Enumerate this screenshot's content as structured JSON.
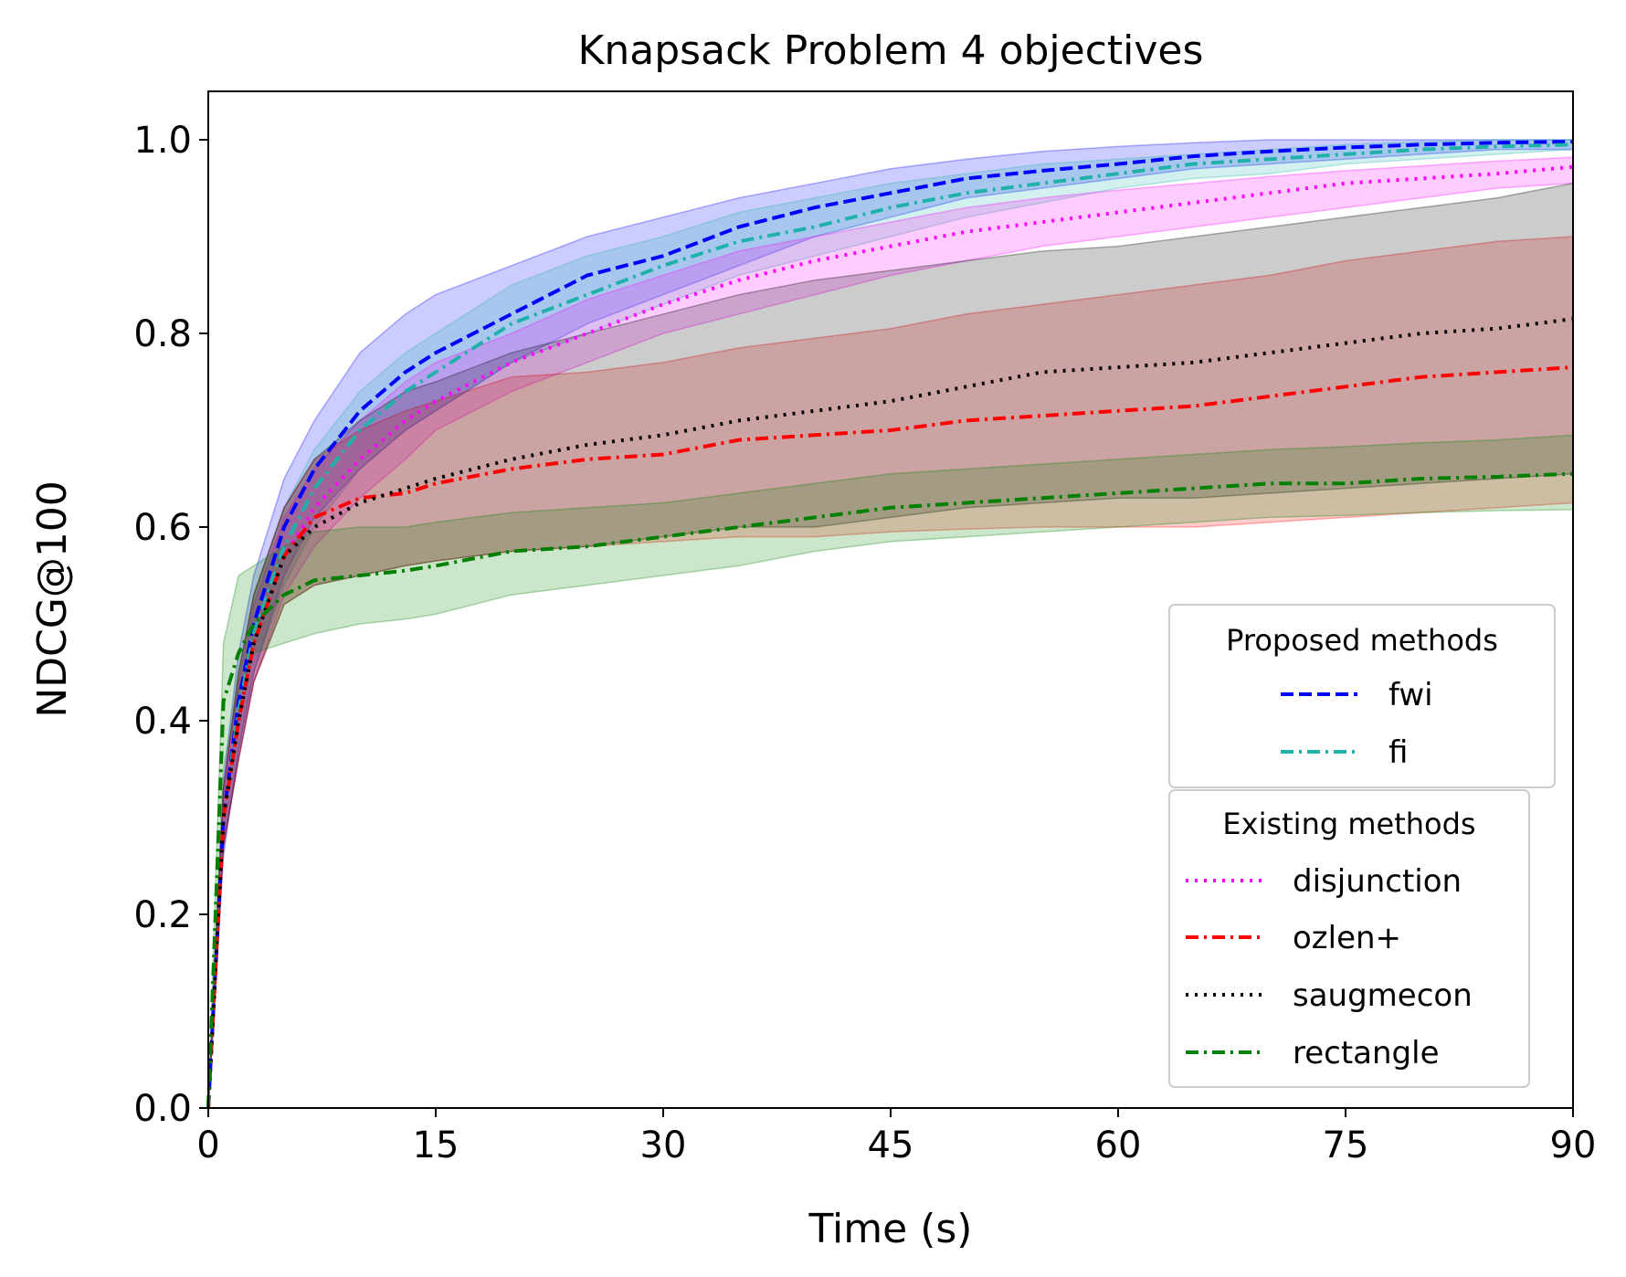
{
  "chart_data": {
    "type": "line",
    "title": "Knapsack Problem 4 objectives",
    "xlabel": "Time (s)",
    "ylabel": "NDCG@100",
    "xlim": [
      0,
      90
    ],
    "ylim": [
      0,
      1.05
    ],
    "xticks": [
      0,
      15,
      30,
      45,
      60,
      75,
      90
    ],
    "xtick_labels": [
      "0",
      "15",
      "30",
      "45",
      "60",
      "75",
      "90"
    ],
    "yticks": [
      0.0,
      0.2,
      0.4,
      0.6,
      0.8,
      1.0
    ],
    "ytick_labels": [
      "0.0",
      "0.2",
      "0.4",
      "0.6",
      "0.8",
      "1.0"
    ],
    "grid": false,
    "legend_groups": [
      {
        "title": "Proposed methods",
        "series": [
          "fwi",
          "fi"
        ]
      },
      {
        "title": "Existing methods",
        "series": [
          "disjunction",
          "ozlen+",
          "saugmecon",
          "rectangle"
        ]
      }
    ],
    "series": [
      {
        "name": "fwi",
        "color": "#0000ff",
        "dash": "dashed",
        "x": [
          0,
          1,
          2,
          3,
          5,
          7,
          10,
          13,
          15,
          20,
          25,
          30,
          35,
          40,
          45,
          50,
          55,
          60,
          65,
          70,
          75,
          80,
          85,
          90
        ],
        "y": [
          0.0,
          0.3,
          0.42,
          0.5,
          0.6,
          0.66,
          0.72,
          0.76,
          0.78,
          0.82,
          0.86,
          0.88,
          0.91,
          0.93,
          0.945,
          0.96,
          0.968,
          0.975,
          0.983,
          0.988,
          0.992,
          0.995,
          0.997,
          0.998
        ],
        "lower": [
          0.0,
          0.26,
          0.37,
          0.45,
          0.55,
          0.61,
          0.66,
          0.7,
          0.72,
          0.77,
          0.81,
          0.84,
          0.87,
          0.9,
          0.92,
          0.94,
          0.95,
          0.96,
          0.97,
          0.975,
          0.98,
          0.985,
          0.99,
          0.99
        ],
        "upper": [
          0.0,
          0.34,
          0.47,
          0.55,
          0.65,
          0.71,
          0.78,
          0.82,
          0.84,
          0.87,
          0.9,
          0.92,
          0.94,
          0.955,
          0.97,
          0.98,
          0.988,
          0.993,
          0.997,
          1.0,
          1.0,
          1.0,
          1.0,
          1.0
        ]
      },
      {
        "name": "fi",
        "color": "#20b2aa",
        "dash": "dashdot",
        "x": [
          0,
          1,
          2,
          3,
          5,
          7,
          10,
          13,
          15,
          20,
          25,
          30,
          35,
          40,
          45,
          50,
          55,
          60,
          65,
          70,
          75,
          80,
          85,
          90
        ],
        "y": [
          0.0,
          0.3,
          0.41,
          0.49,
          0.58,
          0.64,
          0.7,
          0.74,
          0.76,
          0.81,
          0.84,
          0.87,
          0.895,
          0.91,
          0.93,
          0.945,
          0.955,
          0.965,
          0.975,
          0.98,
          0.985,
          0.99,
          0.993,
          0.995
        ],
        "lower": [
          0.0,
          0.27,
          0.37,
          0.45,
          0.54,
          0.6,
          0.66,
          0.7,
          0.72,
          0.77,
          0.8,
          0.83,
          0.86,
          0.88,
          0.9,
          0.92,
          0.935,
          0.95,
          0.96,
          0.965,
          0.975,
          0.98,
          0.985,
          0.99
        ],
        "upper": [
          0.0,
          0.33,
          0.45,
          0.53,
          0.62,
          0.68,
          0.74,
          0.78,
          0.8,
          0.85,
          0.88,
          0.9,
          0.925,
          0.94,
          0.955,
          0.965,
          0.975,
          0.98,
          0.985,
          0.99,
          0.995,
          0.998,
          1.0,
          1.0
        ]
      },
      {
        "name": "disjunction",
        "color": "#ff00ff",
        "dash": "dotted",
        "x": [
          0,
          1,
          2,
          3,
          5,
          7,
          10,
          13,
          15,
          20,
          25,
          30,
          35,
          40,
          45,
          50,
          55,
          60,
          65,
          70,
          75,
          80,
          85,
          90
        ],
        "y": [
          0.0,
          0.3,
          0.4,
          0.48,
          0.57,
          0.62,
          0.67,
          0.71,
          0.73,
          0.77,
          0.8,
          0.83,
          0.855,
          0.875,
          0.89,
          0.905,
          0.915,
          0.925,
          0.935,
          0.945,
          0.955,
          0.96,
          0.965,
          0.972
        ],
        "lower": [
          0.0,
          0.27,
          0.36,
          0.44,
          0.53,
          0.58,
          0.63,
          0.67,
          0.7,
          0.74,
          0.77,
          0.8,
          0.82,
          0.84,
          0.86,
          0.875,
          0.89,
          0.9,
          0.91,
          0.92,
          0.93,
          0.94,
          0.95,
          0.955
        ],
        "upper": [
          0.0,
          0.33,
          0.44,
          0.52,
          0.61,
          0.66,
          0.71,
          0.75,
          0.77,
          0.8,
          0.835,
          0.86,
          0.885,
          0.9,
          0.915,
          0.93,
          0.94,
          0.948,
          0.955,
          0.962,
          0.968,
          0.973,
          0.978,
          0.982
        ]
      },
      {
        "name": "ozlen+",
        "color": "#ff0000",
        "dash": "dashdot",
        "x": [
          0,
          1,
          2,
          3,
          5,
          7,
          10,
          13,
          15,
          20,
          25,
          30,
          35,
          40,
          45,
          50,
          55,
          60,
          65,
          70,
          75,
          80,
          85,
          90
        ],
        "y": [
          0.0,
          0.3,
          0.4,
          0.48,
          0.57,
          0.61,
          0.63,
          0.635,
          0.645,
          0.66,
          0.67,
          0.675,
          0.69,
          0.695,
          0.7,
          0.71,
          0.715,
          0.72,
          0.725,
          0.735,
          0.745,
          0.755,
          0.76,
          0.765
        ],
        "lower": [
          0.0,
          0.27,
          0.36,
          0.44,
          0.52,
          0.54,
          0.55,
          0.56,
          0.565,
          0.575,
          0.58,
          0.585,
          0.59,
          0.59,
          0.595,
          0.598,
          0.6,
          0.6,
          0.6,
          0.605,
          0.61,
          0.615,
          0.62,
          0.625
        ],
        "upper": [
          0.0,
          0.33,
          0.45,
          0.53,
          0.62,
          0.67,
          0.7,
          0.72,
          0.73,
          0.755,
          0.76,
          0.77,
          0.785,
          0.795,
          0.805,
          0.82,
          0.83,
          0.84,
          0.85,
          0.86,
          0.875,
          0.885,
          0.895,
          0.9
        ]
      },
      {
        "name": "saugmecon",
        "color": "#000000",
        "dash": "dotted",
        "x": [
          0,
          1,
          2,
          3,
          5,
          7,
          10,
          13,
          15,
          20,
          25,
          30,
          35,
          40,
          45,
          50,
          55,
          60,
          65,
          70,
          75,
          80,
          85,
          90
        ],
        "y": [
          0.0,
          0.3,
          0.4,
          0.48,
          0.57,
          0.6,
          0.625,
          0.64,
          0.65,
          0.67,
          0.685,
          0.695,
          0.71,
          0.72,
          0.73,
          0.745,
          0.76,
          0.765,
          0.77,
          0.78,
          0.79,
          0.8,
          0.805,
          0.815
        ],
        "lower": [
          0.0,
          0.27,
          0.36,
          0.44,
          0.52,
          0.54,
          0.55,
          0.56,
          0.565,
          0.575,
          0.58,
          0.59,
          0.6,
          0.6,
          0.61,
          0.62,
          0.625,
          0.63,
          0.63,
          0.635,
          0.64,
          0.645,
          0.65,
          0.655
        ],
        "upper": [
          0.0,
          0.33,
          0.45,
          0.53,
          0.62,
          0.67,
          0.71,
          0.74,
          0.75,
          0.78,
          0.8,
          0.82,
          0.84,
          0.855,
          0.865,
          0.875,
          0.885,
          0.89,
          0.9,
          0.91,
          0.92,
          0.93,
          0.94,
          0.955
        ]
      },
      {
        "name": "rectangle",
        "color": "#008000",
        "dash": "dashdot",
        "x": [
          0,
          1,
          2,
          3,
          5,
          7,
          10,
          13,
          15,
          20,
          25,
          30,
          35,
          40,
          45,
          50,
          55,
          60,
          65,
          70,
          75,
          80,
          85,
          90
        ],
        "y": [
          0.0,
          0.42,
          0.47,
          0.5,
          0.53,
          0.545,
          0.55,
          0.555,
          0.56,
          0.575,
          0.58,
          0.59,
          0.6,
          0.61,
          0.62,
          0.625,
          0.63,
          0.635,
          0.64,
          0.645,
          0.645,
          0.65,
          0.652,
          0.655
        ],
        "lower": [
          0.0,
          0.35,
          0.43,
          0.47,
          0.48,
          0.49,
          0.5,
          0.505,
          0.51,
          0.53,
          0.54,
          0.55,
          0.56,
          0.575,
          0.585,
          0.59,
          0.595,
          0.6,
          0.605,
          0.61,
          0.612,
          0.615,
          0.617,
          0.618
        ],
        "upper": [
          0.0,
          0.48,
          0.55,
          0.56,
          0.58,
          0.595,
          0.6,
          0.6,
          0.605,
          0.615,
          0.62,
          0.625,
          0.635,
          0.645,
          0.655,
          0.66,
          0.665,
          0.67,
          0.675,
          0.68,
          0.683,
          0.687,
          0.69,
          0.695
        ]
      }
    ]
  }
}
